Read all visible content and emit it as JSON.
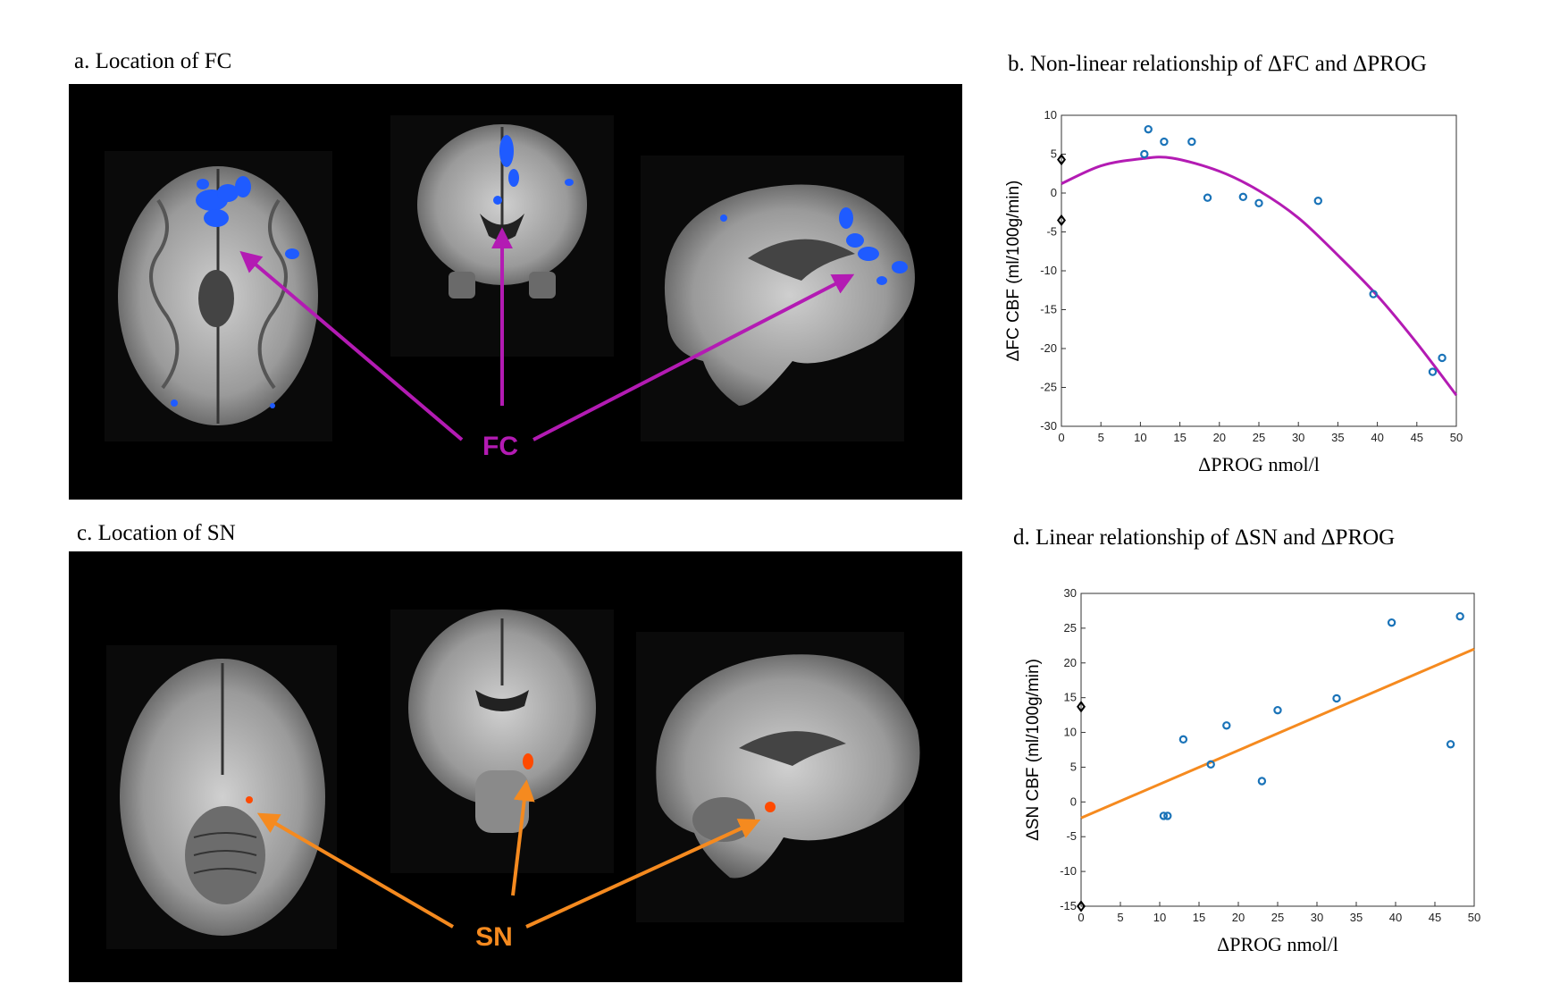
{
  "panel_a": {
    "title": "a. Location of FC",
    "callout": "FC",
    "callout_color": "#b31bb3",
    "overlay_color": "#1f5bff"
  },
  "panel_b": {
    "title": "b. Non-linear relationship of ΔFC and ΔPROG"
  },
  "panel_c": {
    "title": "c. Location of SN",
    "callout": "SN",
    "callout_color": "#f58a1f",
    "overlay_color": "#ff4a00"
  },
  "panel_d": {
    "title": "d. Linear relationship of ΔSN and ΔPROG"
  },
  "chart_data": [
    {
      "type": "scatter",
      "xlabel": "ΔPROG nmol/l",
      "ylabel": "ΔFC CBF (ml/100g/min)",
      "xlim": [
        0,
        50
      ],
      "ylim": [
        -30,
        10
      ],
      "xticks": [
        0,
        5,
        10,
        15,
        20,
        25,
        30,
        35,
        40,
        45,
        50
      ],
      "yticks": [
        10,
        5,
        0,
        -5,
        -10,
        -15,
        -20,
        -25,
        -30
      ],
      "grid": false,
      "series": [
        {
          "marker": "circle",
          "color": "#1a73b8",
          "points": [
            [
              10.5,
              5
            ],
            [
              11,
              8.2
            ],
            [
              13,
              6.6
            ],
            [
              16.5,
              6.6
            ],
            [
              18.5,
              -0.6
            ],
            [
              23,
              -0.5
            ],
            [
              25,
              -1.3
            ],
            [
              32.5,
              -1
            ],
            [
              39.5,
              -13
            ],
            [
              47,
              -23
            ],
            [
              48.2,
              -21.2
            ]
          ]
        },
        {
          "marker": "diamond",
          "color": "#000000",
          "points": [
            [
              0,
              4.3
            ],
            [
              0,
              -3.5
            ]
          ]
        }
      ],
      "fit": {
        "type": "quadratic",
        "color": "#b31bb3",
        "points": [
          [
            0,
            1.2
          ],
          [
            5,
            3.5
          ],
          [
            10,
            4.4
          ],
          [
            14,
            4.5
          ],
          [
            20,
            2.8
          ],
          [
            25,
            0.3
          ],
          [
            30,
            -3.2
          ],
          [
            35,
            -8
          ],
          [
            40,
            -13.2
          ],
          [
            45,
            -19.3
          ],
          [
            50,
            -26
          ]
        ]
      }
    },
    {
      "type": "scatter",
      "xlabel": "ΔPROG nmol/l",
      "ylabel": "ΔSN CBF (ml/100g/min)",
      "xlim": [
        0,
        50
      ],
      "ylim": [
        -15,
        30
      ],
      "xticks": [
        0,
        5,
        10,
        15,
        20,
        25,
        30,
        35,
        40,
        45,
        50
      ],
      "yticks": [
        30,
        25,
        20,
        15,
        10,
        5,
        0,
        -5,
        -10,
        -15
      ],
      "grid": false,
      "series": [
        {
          "marker": "circle",
          "color": "#1a73b8",
          "points": [
            [
              10.5,
              -2
            ],
            [
              11,
              -2
            ],
            [
              13,
              9
            ],
            [
              16.5,
              5.4
            ],
            [
              18.5,
              11
            ],
            [
              23,
              3
            ],
            [
              25,
              13.2
            ],
            [
              32.5,
              14.9
            ],
            [
              39.5,
              25.8
            ],
            [
              47,
              8.3
            ],
            [
              48.2,
              26.7
            ]
          ]
        },
        {
          "marker": "diamond",
          "color": "#000000",
          "points": [
            [
              0,
              13.7
            ],
            [
              0,
              -15
            ]
          ]
        }
      ],
      "fit": {
        "type": "linear",
        "color": "#f58a1f",
        "points": [
          [
            0,
            -2.3
          ],
          [
            50,
            22
          ]
        ]
      }
    }
  ]
}
